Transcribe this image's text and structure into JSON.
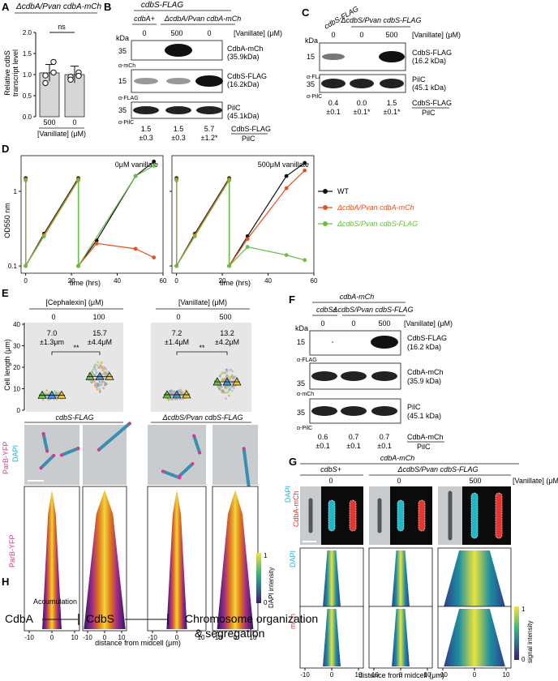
{
  "panels": {
    "A": "A",
    "B": "B",
    "C": "C",
    "D": "D",
    "E": "E",
    "F": "F",
    "G": "G",
    "H": "H"
  },
  "panelA": {
    "title": "ΔcdbA/Pvan cdbA-mCh",
    "ylabel_line1": "Relative cdbS",
    "ylabel_line2": "transcript level",
    "yticks": [
      "0.0",
      "0.5",
      "1.0",
      "1.5",
      "2.0"
    ],
    "sig": "ns",
    "x_labels": [
      "500",
      "0"
    ],
    "xaxis_label": "[Vanillate] (μM)",
    "chart_data": {
      "type": "bar",
      "categories": [
        "500",
        "0"
      ],
      "values": [
        1.04,
        1.0
      ],
      "ylim": [
        0,
        2.0
      ],
      "ylabel": "Relative cdbS transcript level",
      "xlabel": "[Vanillate] (μM)",
      "points": [
        [
          0.98,
          1.3,
          0.8,
          1.05
        ],
        [
          0.95,
          1.05,
          0.88,
          0.97
        ]
      ]
    }
  },
  "panelB": {
    "header": "cdbS-FLAG",
    "col_labels": [
      "cdbA+",
      "ΔcdbA/Pvan cdbA-mCh"
    ],
    "vanillate": [
      "0",
      "500",
      "0"
    ],
    "vanillate_label": "[Vanillate] (μM)",
    "kda": "kDa",
    "blots": [
      {
        "marker": "35",
        "antibody": "α-mCh",
        "band": "CdbA-mCh",
        "size": "(35.9kDa)"
      },
      {
        "marker": "15",
        "antibody": "α-FLAG",
        "band": "CdbS-FLAG",
        "size": "(16.2kDa)"
      },
      {
        "marker": "35",
        "antibody": "α-PilC",
        "band": "PilC",
        "size": "(45.1kDa)"
      }
    ],
    "quant_values": [
      "1.5",
      "1.5",
      "5.7"
    ],
    "quant_errors": [
      "±0.3",
      "±0.3",
      "±1.2*"
    ],
    "ratio_top": "CdbS-FLAG",
    "ratio_bottom": "PilC"
  },
  "panelC": {
    "col_labels": [
      "cdbS-FLAG",
      "ΔcdbS/Pvan cdbS-FLAG"
    ],
    "vanillate": [
      "0",
      "0",
      "500"
    ],
    "vanillate_label": "[Vanillate] (μM)",
    "kda": "kDa",
    "blots": [
      {
        "marker": "15",
        "antibody": "α-FLAG",
        "band": "CdbS-FLAG",
        "size": "(16.2 kDa)"
      },
      {
        "marker": "35",
        "antibody": "α-PilC",
        "band": "PilC",
        "size": "(45.1 kDa)"
      }
    ],
    "quant_values": [
      "0.4",
      "0.0",
      "1.5"
    ],
    "quant_errors": [
      "±0.1",
      "±0.1*",
      "±0.1*"
    ],
    "ratio_top": "CdbS-FLAG",
    "ratio_bottom": "PilC"
  },
  "panelD": {
    "ylabel": "OD550 nm",
    "yticks": [
      "0.1",
      "1"
    ],
    "xticks": [
      "0",
      "20",
      "40",
      "60"
    ],
    "xlabel": "time (hrs)",
    "chart_data": [
      {
        "type": "line",
        "title": "0μM vanillate",
        "ylim": [
          0.08,
          3
        ],
        "xlim": [
          -2,
          60
        ],
        "yscale": "log",
        "series": [
          {
            "name": "WT",
            "color": "#111111",
            "x": [
              0,
              0,
              8,
              23,
              23,
              31,
              48,
              56
            ],
            "y": [
              1.5,
              0.1,
              0.27,
              1.5,
              0.1,
              0.22,
              1.6,
              2.5
            ]
          },
          {
            "name": "ΔcdbA/Pvan cdbA-mCh",
            "color": "#e8501e",
            "x": [
              0,
              0,
              8,
              23,
              23,
              31,
              48,
              56
            ],
            "y": [
              1.45,
              0.1,
              0.26,
              1.45,
              0.1,
              0.2,
              0.17,
              0.13
            ]
          },
          {
            "name": "ΔcdbS/Pvan cdbS-FLAG",
            "color": "#6cbd45",
            "x": [
              0,
              0,
              8,
              23,
              23,
              48,
              56
            ],
            "y": [
              1.4,
              0.1,
              0.25,
              1.4,
              0.1,
              1.6,
              2.2
            ]
          }
        ]
      },
      {
        "type": "line",
        "title": "500μM vanillate",
        "ylim": [
          0.08,
          3
        ],
        "xlim": [
          -2,
          60
        ],
        "yscale": "log",
        "series": [
          {
            "name": "WT",
            "color": "#111111",
            "x": [
              0,
              0,
              8,
              23,
              23,
              31,
              48,
              56
            ],
            "y": [
              1.5,
              0.1,
              0.27,
              1.5,
              0.1,
              0.25,
              1.6,
              2.4
            ]
          },
          {
            "name": "ΔcdbA/Pvan cdbA-mCh",
            "color": "#e8501e",
            "x": [
              0,
              0,
              8,
              23,
              23,
              31,
              48,
              56
            ],
            "y": [
              1.45,
              0.1,
              0.26,
              1.45,
              0.1,
              0.23,
              1.1,
              1.9
            ]
          },
          {
            "name": "ΔcdbS/Pvan cdbS-FLAG",
            "color": "#6cbd45",
            "x": [
              0,
              0,
              8,
              23,
              23,
              31,
              48,
              56
            ],
            "y": [
              1.4,
              0.1,
              0.25,
              1.4,
              0.1,
              0.18,
              0.14,
              0.12
            ]
          }
        ]
      }
    ],
    "legend": [
      "WT",
      "ΔcdbA/Pvan cdbA-mCh",
      "ΔcdbS/Pvan cdbS-FLAG"
    ]
  },
  "panelE": {
    "group_labels": [
      "[Cephalexin] (μM)",
      "[Vanillate] (μM)"
    ],
    "conc": [
      "0",
      "100",
      "0",
      "500"
    ],
    "means": [
      "7.0",
      "15.7",
      "7.2",
      "13.2"
    ],
    "sds": [
      "±1.3μm",
      "±4.4μM",
      "±1.4μM",
      "±4.2μM"
    ],
    "sig": [
      "**",
      "**"
    ],
    "ylabel": "Cell length (μm)",
    "yticks": [
      "0",
      "10",
      "20",
      "30",
      "40"
    ],
    "strain_labels": [
      "cdbS-FLAG",
      "ΔcdbS/Pvan cdbS-FLAG"
    ],
    "channel_labels": [
      "ParB-YFP",
      "DAPI"
    ],
    "demo_ylabel": "ParB-YFP",
    "xticks": [
      "-10",
      "0",
      "10"
    ],
    "xlabel": "distance from midcell (μm)",
    "cbar_label": "DAPI intensity",
    "cbar_ticks": [
      "0",
      "1"
    ],
    "chart_data": {
      "type": "scatter",
      "categories": [
        "Cephalexin 0",
        "Cephalexin 100",
        "Vanillate 0",
        "Vanillate 500"
      ],
      "values": [
        7.0,
        15.7,
        7.2,
        13.2
      ],
      "errors": [
        1.3,
        4.4,
        1.4,
        4.2
      ],
      "ylim": [
        0,
        40
      ]
    }
  },
  "panelF": {
    "header": "cdbA-mCh",
    "col_labels": [
      "cdbS+",
      "ΔcdbS/Pvan cdbS-FLAG"
    ],
    "vanillate": [
      "0",
      "0",
      "500"
    ],
    "vanillate_label": "[Vanillate] (μM)",
    "kda": "kDa",
    "blots": [
      {
        "marker": "15",
        "antibody": "α-FLAG",
        "band": "CdbS-FLAG",
        "size": "(16.2 kDa)"
      },
      {
        "marker": "35",
        "antibody": "α-mCh",
        "band": "CdbA-mCh",
        "size": "(35.9 kDa)"
      },
      {
        "marker": "35",
        "antibody": "α-PilC",
        "band": "PilC",
        "size": "(45.1 kDa)"
      }
    ],
    "quant_values": [
      "0.6",
      "0.7",
      "0.7"
    ],
    "quant_errors": [
      "±0.1",
      "±0.1",
      "±0.1"
    ],
    "ratio_top": "CdbA-mCh",
    "ratio_bottom": "PilC"
  },
  "panelG": {
    "header": "cdbA-mCh",
    "col_labels": [
      "cdbS+",
      "ΔcdbS/Pvan cdbS-FLAG"
    ],
    "vanillate": [
      "0",
      "0",
      "500"
    ],
    "vanillate_label": "[Vanillate] (μM)",
    "channel_labels": [
      "DAPI",
      "CdbA-mCh"
    ],
    "row_labels": [
      "DAPI",
      "mCh"
    ],
    "xticks": [
      "-10",
      "0",
      "10"
    ],
    "xlabel": "distance from midcell (μm)",
    "cbar_label": "signal intensity",
    "cbar_ticks": [
      "0",
      "1"
    ]
  },
  "panelH": {
    "node1": "CdbA",
    "node2": "CdbS",
    "node3_line1": "Chromosome organization",
    "node3_line2": "& segregation",
    "edge_label": "Accumulation"
  },
  "colors": {
    "wt": "#111111",
    "cdbA": "#e8501e",
    "cdbS": "#6cbd45",
    "parb": "#e0338f",
    "dapi": "#2bb6d8",
    "mch": "#e8342e",
    "grayPanel": "#e8e8e8"
  }
}
